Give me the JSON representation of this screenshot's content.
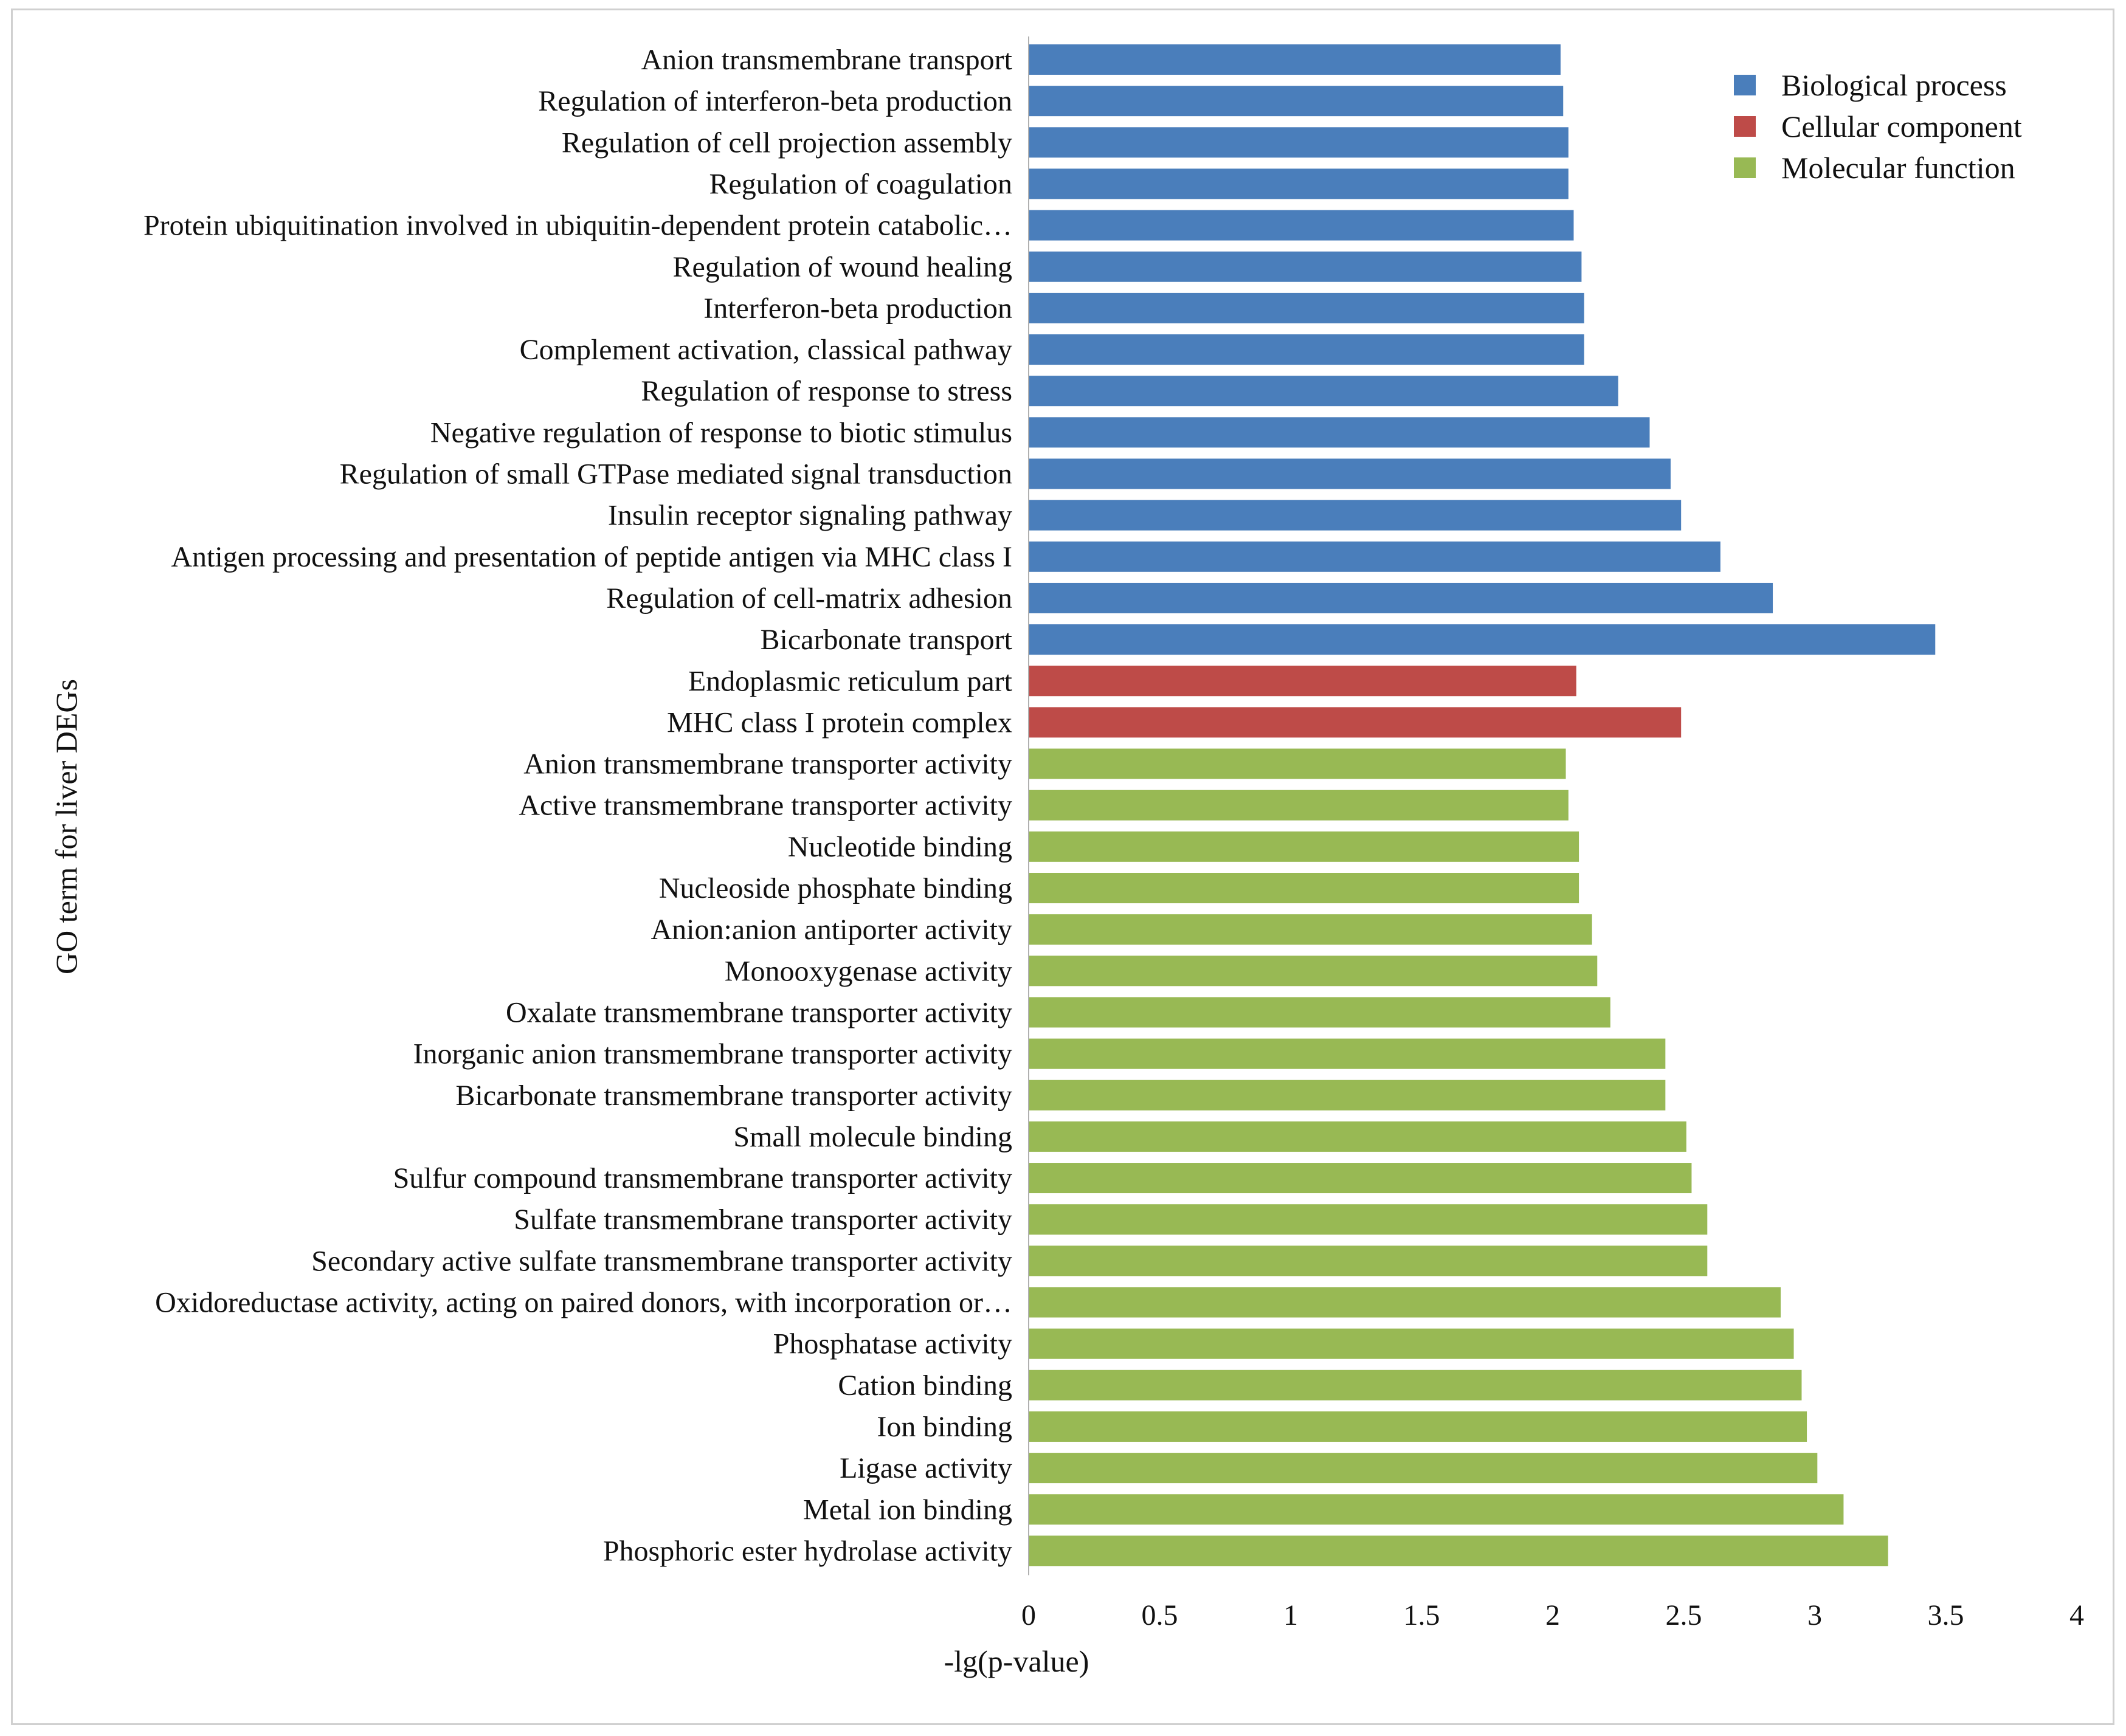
{
  "chart_data": {
    "type": "bar",
    "orientation": "horizontal",
    "xlabel": "-lg(p-value)",
    "ylabel": "GO term for liver DEGs",
    "xlim": [
      0,
      4
    ],
    "xticks": [
      "0",
      "0.5",
      "1",
      "1.5",
      "2",
      "2.5",
      "3",
      "3.5",
      "4"
    ],
    "grid": false,
    "legend_position": "top-right",
    "legend": [
      {
        "name": "Biological process",
        "color": "#4a7ebb"
      },
      {
        "name": "Cellular component",
        "color": "#be4b48"
      },
      {
        "name": "Molecular function",
        "color": "#98b954"
      }
    ],
    "categories": [
      "Anion transmembrane transport",
      "Regulation of interferon-beta production",
      "Regulation of cell projection assembly",
      "Regulation of coagulation",
      "Protein ubiquitination involved in ubiquitin-dependent protein catabolic…",
      "Regulation of wound healing",
      "Interferon-beta production",
      "Complement activation, classical pathway",
      "Regulation of response to stress",
      "Negative regulation of response to biotic stimulus",
      "Regulation of small GTPase mediated signal transduction",
      "Insulin receptor signaling pathway",
      "Antigen processing and presentation of peptide antigen via MHC class I",
      "Regulation of cell-matrix adhesion",
      "Bicarbonate transport",
      "Endoplasmic reticulum part",
      "MHC class I protein complex",
      "Anion transmembrane transporter activity",
      "Active transmembrane transporter activity",
      "Nucleotide binding",
      "Nucleoside phosphate binding",
      "Anion:anion antiporter activity",
      "Monooxygenase activity",
      "Oxalate transmembrane transporter activity",
      "Inorganic anion transmembrane transporter activity",
      "Bicarbonate transmembrane transporter activity",
      "Small molecule binding",
      "Sulfur compound transmembrane transporter activity",
      "Sulfate transmembrane transporter activity",
      "Secondary active sulfate transmembrane transporter activity",
      "Oxidoreductase activity, acting on paired donors, with incorporation or…",
      "Phosphatase activity",
      "Cation binding",
      "Ion binding",
      "Ligase activity",
      "Metal ion binding",
      "Phosphoric ester hydrolase activity"
    ],
    "values": [
      2.03,
      2.04,
      2.06,
      2.06,
      2.08,
      2.11,
      2.12,
      2.12,
      2.25,
      2.37,
      2.45,
      2.49,
      2.64,
      2.84,
      3.46,
      2.09,
      2.49,
      2.05,
      2.06,
      2.1,
      2.1,
      2.15,
      2.17,
      2.22,
      2.43,
      2.43,
      2.51,
      2.53,
      2.59,
      2.59,
      2.87,
      2.92,
      2.95,
      2.97,
      3.01,
      3.11,
      3.28
    ],
    "groups": [
      "Biological process",
      "Biological process",
      "Biological process",
      "Biological process",
      "Biological process",
      "Biological process",
      "Biological process",
      "Biological process",
      "Biological process",
      "Biological process",
      "Biological process",
      "Biological process",
      "Biological process",
      "Biological process",
      "Biological process",
      "Cellular component",
      "Cellular component",
      "Molecular function",
      "Molecular function",
      "Molecular function",
      "Molecular function",
      "Molecular function",
      "Molecular function",
      "Molecular function",
      "Molecular function",
      "Molecular function",
      "Molecular function",
      "Molecular function",
      "Molecular function",
      "Molecular function",
      "Molecular function",
      "Molecular function",
      "Molecular function",
      "Molecular function",
      "Molecular function",
      "Molecular function",
      "Molecular function"
    ]
  }
}
